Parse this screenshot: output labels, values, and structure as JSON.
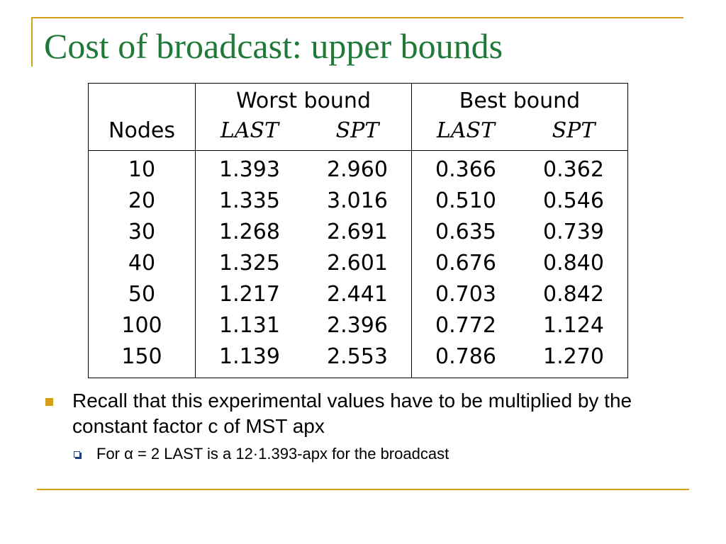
{
  "slide": {
    "title": "Cost of broadcast: upper bounds",
    "accent_color": "#d4a017",
    "title_color": "#1f7a3a"
  },
  "table": {
    "group_headers": [
      "Worst bound",
      "Best bound"
    ],
    "sub_headers": [
      "Nodes",
      "LAST",
      "SPT",
      "LAST",
      "SPT"
    ],
    "rows": [
      {
        "nodes": "10",
        "worst_last": "1.393",
        "worst_spt": "2.960",
        "best_last": "0.366",
        "best_spt": "0.362"
      },
      {
        "nodes": "20",
        "worst_last": "1.335",
        "worst_spt": "3.016",
        "best_last": "0.510",
        "best_spt": "0.546"
      },
      {
        "nodes": "30",
        "worst_last": "1.268",
        "worst_spt": "2.691",
        "best_last": "0.635",
        "best_spt": "0.739"
      },
      {
        "nodes": "40",
        "worst_last": "1.325",
        "worst_spt": "2.601",
        "best_last": "0.676",
        "best_spt": "0.840"
      },
      {
        "nodes": "50",
        "worst_last": "1.217",
        "worst_spt": "2.441",
        "best_last": "0.703",
        "best_spt": "0.842"
      },
      {
        "nodes": "100",
        "worst_last": "1.131",
        "worst_spt": "2.396",
        "best_last": "0.772",
        "best_spt": "1.124"
      },
      {
        "nodes": "150",
        "worst_last": "1.139",
        "worst_spt": "2.553",
        "best_last": "0.786",
        "best_spt": "1.270"
      }
    ],
    "bold_cells": [
      "0.worst_last",
      "1.worst_spt",
      "0.best_last",
      "0.best_spt"
    ]
  },
  "bullets": {
    "level1": "Recall that this experimental values have to be multiplied by the constant factor c of MST apx",
    "level2": "For α = 2 LAST is a 12·1.393-apx for the broadcast",
    "level1_marker": "filled-square-bullet-icon",
    "level2_marker": "hollow-square-bullet-icon"
  }
}
